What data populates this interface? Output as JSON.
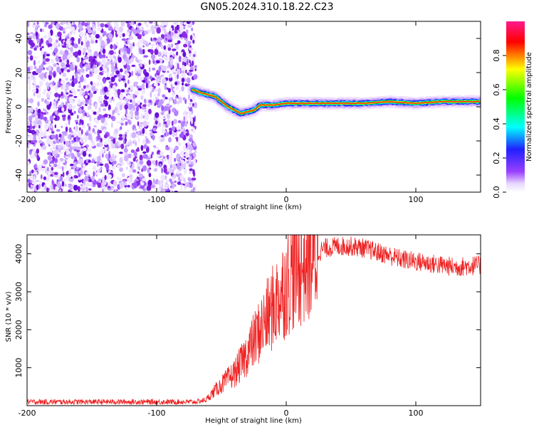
{
  "title": "GN05.2024.310.18.22.C23",
  "chart_data": [
    {
      "type": "heatmap",
      "xlabel": "Height of straight line (km)",
      "ylabel": "Frequency (Hz)",
      "xlim": [
        -200,
        150
      ],
      "ylim": [
        -50,
        50
      ],
      "x_ticks": [
        -200,
        -100,
        0,
        100
      ],
      "y_ticks": [
        -40,
        -20,
        0,
        20,
        40
      ],
      "colorbar": {
        "label": "Normalized spectral amplitude",
        "range": [
          0,
          1
        ],
        "ticks": [
          "0.0",
          "0.2",
          "0.4",
          "0.6",
          "0.8"
        ],
        "colors": [
          "#ffffff",
          "#8a00ff",
          "#0000ff",
          "#00ffff",
          "#00ff00",
          "#ffff00",
          "#ff0000",
          "#ff0080"
        ]
      },
      "noise_region_x": [
        -200,
        -72
      ],
      "signal_track": {
        "x": [
          -72,
          -65,
          -60,
          -55,
          -50,
          -45,
          -40,
          -35,
          -30,
          -25,
          -20,
          -10,
          0,
          10,
          20,
          40,
          60,
          80,
          100,
          120,
          150
        ],
        "y": [
          10,
          8,
          7,
          6,
          3,
          0,
          -2,
          -4,
          -3,
          -2,
          1,
          1,
          2,
          2,
          2,
          2,
          2,
          3,
          2,
          3,
          3
        ]
      }
    },
    {
      "type": "line",
      "xlabel": "Height of straight line (km)",
      "ylabel": "SNR (10 * v/v)",
      "xlim": [
        -200,
        150
      ],
      "ylim": [
        0,
        4500
      ],
      "x_ticks": [
        -200,
        -100,
        0,
        100
      ],
      "y_ticks": [
        1000,
        2000,
        3000,
        4000
      ],
      "color": "#ee2222",
      "series": [
        {
          "x": [
            -200,
            -150,
            -100,
            -70,
            -62,
            -55,
            -50,
            -45,
            -40,
            -35,
            -30,
            -25,
            -20,
            -15,
            -10,
            -5,
            0,
            5,
            10,
            15,
            20,
            25,
            30,
            40,
            50,
            60,
            70,
            80,
            90,
            100,
            110,
            120,
            130,
            140,
            150
          ],
          "y": [
            100,
            100,
            100,
            100,
            150,
            400,
            550,
            700,
            850,
            1100,
            1400,
            1700,
            2000,
            2300,
            2600,
            2900,
            3200,
            3500,
            3650,
            3800,
            3950,
            4050,
            4150,
            4200,
            4200,
            4150,
            4050,
            3950,
            3850,
            3800,
            3750,
            3700,
            3650,
            3680,
            3700
          ]
        }
      ]
    }
  ]
}
